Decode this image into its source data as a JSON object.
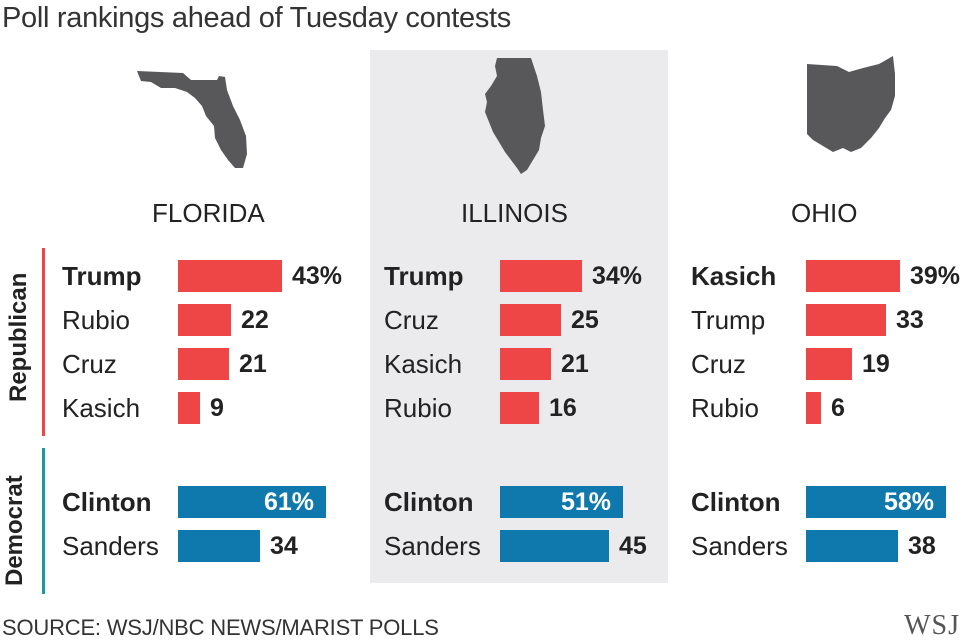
{
  "title": "Poll rankings ahead of Tuesday contests",
  "parties": {
    "republican": "Republican",
    "democrat": "Democrat"
  },
  "colors": {
    "republican": "#ee4546",
    "democrat": "#0f78ad",
    "highlight_panel": "#ebebed",
    "map": "#58585a",
    "republican_rule": "#ee4546",
    "democrat_rule": "#1d9a9c"
  },
  "chart_data": {
    "type": "bar",
    "title": "Poll rankings ahead of Tuesday contests",
    "unit": "%",
    "states": [
      {
        "name": "FLORIDA",
        "republican": [
          {
            "name": "Trump",
            "value": 43,
            "label": "43%"
          },
          {
            "name": "Rubio",
            "value": 22,
            "label": "22"
          },
          {
            "name": "Cruz",
            "value": 21,
            "label": "21"
          },
          {
            "name": "Kasich",
            "value": 9,
            "label": "9"
          }
        ],
        "democrat": [
          {
            "name": "Clinton",
            "value": 61,
            "label": "61%"
          },
          {
            "name": "Sanders",
            "value": 34,
            "label": "34"
          }
        ]
      },
      {
        "name": "ILLINOIS",
        "republican": [
          {
            "name": "Trump",
            "value": 34,
            "label": "34%"
          },
          {
            "name": "Cruz",
            "value": 25,
            "label": "25"
          },
          {
            "name": "Kasich",
            "value": 21,
            "label": "21"
          },
          {
            "name": "Rubio",
            "value": 16,
            "label": "16"
          }
        ],
        "democrat": [
          {
            "name": "Clinton",
            "value": 51,
            "label": "51%"
          },
          {
            "name": "Sanders",
            "value": 45,
            "label": "45"
          }
        ]
      },
      {
        "name": "OHIO",
        "republican": [
          {
            "name": "Kasich",
            "value": 39,
            "label": "39%"
          },
          {
            "name": "Trump",
            "value": 33,
            "label": "33"
          },
          {
            "name": "Cruz",
            "value": 19,
            "label": "19"
          },
          {
            "name": "Rubio",
            "value": 6,
            "label": "6"
          }
        ],
        "democrat": [
          {
            "name": "Clinton",
            "value": 58,
            "label": "58%"
          },
          {
            "name": "Sanders",
            "value": 38,
            "label": "38"
          }
        ]
      }
    ]
  },
  "source": "SOURCE: WSJ/NBC NEWS/MARIST POLLS",
  "logo": "WSJ"
}
